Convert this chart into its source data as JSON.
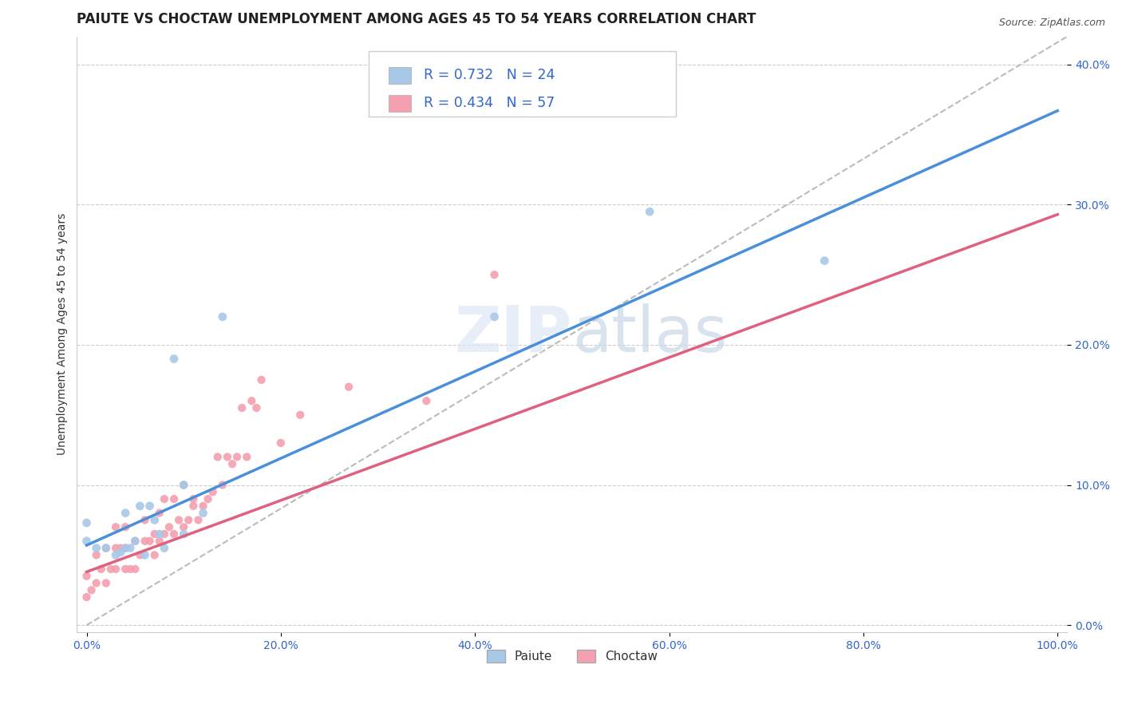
{
  "title": "PAIUTE VS CHOCTAW UNEMPLOYMENT AMONG AGES 45 TO 54 YEARS CORRELATION CHART",
  "source_text": "Source: ZipAtlas.com",
  "ylabel": "Unemployment Among Ages 45 to 54 years",
  "xlabel": "",
  "xlim": [
    -0.01,
    1.01
  ],
  "ylim": [
    -0.005,
    0.42
  ],
  "x_ticks": [
    0.0,
    0.2,
    0.4,
    0.6,
    0.8,
    1.0
  ],
  "x_tick_labels": [
    "0.0%",
    "20.0%",
    "40.0%",
    "60.0%",
    "80.0%",
    "100.0%"
  ],
  "y_ticks": [
    0.0,
    0.1,
    0.2,
    0.3,
    0.4
  ],
  "y_tick_labels": [
    "0.0%",
    "10.0%",
    "20.0%",
    "30.0%",
    "40.0%"
  ],
  "paiute_color": "#a8c8e8",
  "choctaw_color": "#f4a0b0",
  "trend_paiute_color": "#4a90d9",
  "trend_choctaw_color": "#e06080",
  "legend_R_paiute": "R = 0.732",
  "legend_N_paiute": "N = 24",
  "legend_R_choctaw": "R = 0.434",
  "legend_N_choctaw": "N = 57",
  "paiute_label": "Paiute",
  "choctaw_label": "Choctaw",
  "title_fontsize": 12,
  "axis_label_fontsize": 10,
  "tick_fontsize": 10,
  "background_color": "#ffffff",
  "grid_color": "#cccccc",
  "diag_color": "#bbbbbb",
  "trend_paiute_intercept": 0.057,
  "trend_paiute_slope": 0.31,
  "trend_choctaw_intercept": 0.038,
  "trend_choctaw_slope": 0.255,
  "paiute_scatter": {
    "x": [
      0.0,
      0.0,
      0.01,
      0.02,
      0.03,
      0.035,
      0.04,
      0.04,
      0.045,
      0.05,
      0.055,
      0.06,
      0.065,
      0.07,
      0.075,
      0.08,
      0.09,
      0.1,
      0.1,
      0.12,
      0.14,
      0.42,
      0.58,
      0.76
    ],
    "y": [
      0.06,
      0.073,
      0.055,
      0.055,
      0.05,
      0.052,
      0.055,
      0.08,
      0.055,
      0.06,
      0.085,
      0.05,
      0.085,
      0.075,
      0.065,
      0.055,
      0.19,
      0.1,
      0.065,
      0.08,
      0.22,
      0.22,
      0.295,
      0.26
    ]
  },
  "choctaw_scatter": {
    "x": [
      0.0,
      0.0,
      0.005,
      0.01,
      0.01,
      0.015,
      0.02,
      0.02,
      0.025,
      0.03,
      0.03,
      0.03,
      0.035,
      0.04,
      0.04,
      0.04,
      0.045,
      0.05,
      0.05,
      0.055,
      0.06,
      0.06,
      0.065,
      0.07,
      0.07,
      0.075,
      0.075,
      0.08,
      0.08,
      0.085,
      0.09,
      0.09,
      0.095,
      0.1,
      0.1,
      0.105,
      0.11,
      0.11,
      0.115,
      0.12,
      0.125,
      0.13,
      0.135,
      0.14,
      0.145,
      0.15,
      0.155,
      0.16,
      0.165,
      0.17,
      0.175,
      0.18,
      0.2,
      0.22,
      0.27,
      0.35,
      0.42
    ],
    "y": [
      0.02,
      0.035,
      0.025,
      0.03,
      0.05,
      0.04,
      0.03,
      0.055,
      0.04,
      0.04,
      0.055,
      0.07,
      0.055,
      0.04,
      0.055,
      0.07,
      0.04,
      0.04,
      0.06,
      0.05,
      0.06,
      0.075,
      0.06,
      0.05,
      0.065,
      0.06,
      0.08,
      0.065,
      0.09,
      0.07,
      0.065,
      0.09,
      0.075,
      0.07,
      0.1,
      0.075,
      0.085,
      0.09,
      0.075,
      0.085,
      0.09,
      0.095,
      0.12,
      0.1,
      0.12,
      0.115,
      0.12,
      0.155,
      0.12,
      0.16,
      0.155,
      0.175,
      0.13,
      0.15,
      0.17,
      0.16,
      0.25
    ]
  }
}
